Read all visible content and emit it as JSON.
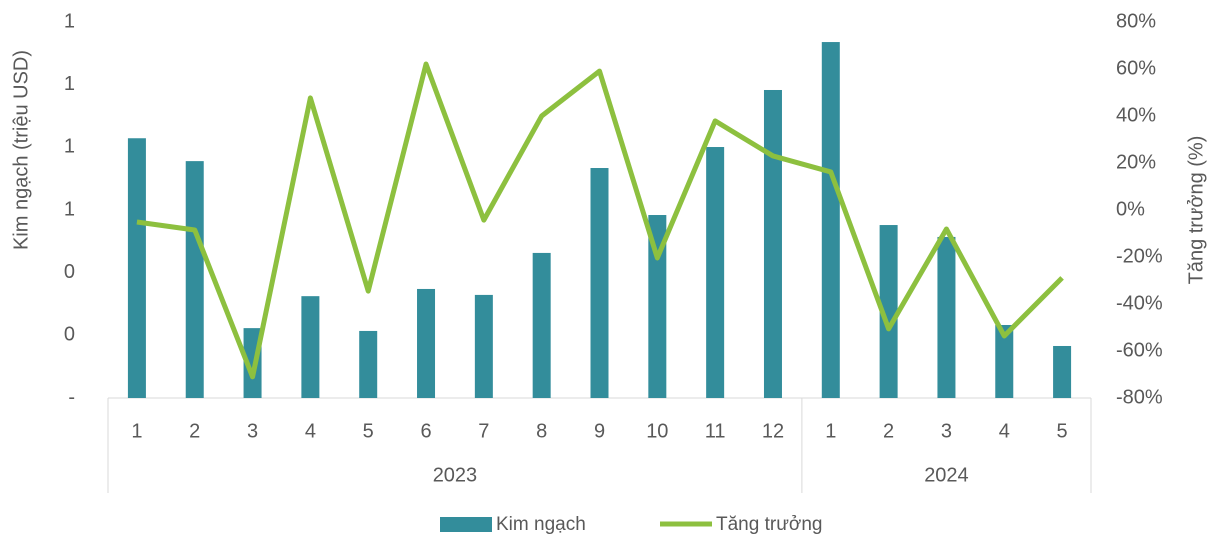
{
  "chart_data": {
    "type": "bar-line",
    "y_axis_label": "Kim ngạch (triệu USD)",
    "y2_axis_label": "Tăng trưởng (%)",
    "groups": [
      {
        "label": "2023",
        "categories": [
          "1",
          "2",
          "3",
          "4",
          "5",
          "6",
          "7",
          "8",
          "9",
          "10",
          "11",
          "12"
        ]
      },
      {
        "label": "2024",
        "categories": [
          "1",
          "2",
          "3",
          "4",
          "5"
        ]
      }
    ],
    "series": [
      {
        "name": "Kim ngạch",
        "type": "bar",
        "color": "#338d9b",
        "values": [
          0.829,
          0.756,
          0.223,
          0.325,
          0.214,
          0.348,
          0.329,
          0.463,
          0.734,
          0.584,
          0.801,
          0.983,
          1.136,
          0.552,
          0.514,
          0.233,
          0.166
        ]
      },
      {
        "name": "Tăng trưởng",
        "type": "line",
        "axis": "y2",
        "color": "#8dc03f",
        "values": [
          -5.1,
          -8.5,
          -71,
          47.7,
          -34.5,
          62.1,
          -4.3,
          40,
          59.1,
          -20.4,
          37.9,
          23,
          16.2,
          -50.6,
          -8.1,
          -53.6,
          -28.9
        ]
      }
    ],
    "ylim": [
      0,
      1.2
    ],
    "yticks": [
      {
        "value": 0,
        "label": "-"
      },
      {
        "value": 0.2,
        "label": "0"
      },
      {
        "value": 0.4,
        "label": "0"
      },
      {
        "value": 0.6,
        "label": "1"
      },
      {
        "value": 0.8,
        "label": "1"
      },
      {
        "value": 1.0,
        "label": "1"
      },
      {
        "value": 1.2,
        "label": "1"
      }
    ],
    "y2lim": [
      -80,
      80
    ],
    "y2ticks": [
      {
        "value": -80,
        "label": "-80%"
      },
      {
        "value": -60,
        "label": "-60%"
      },
      {
        "value": -40,
        "label": "-40%"
      },
      {
        "value": -20,
        "label": "-20%"
      },
      {
        "value": 0,
        "label": "0%"
      },
      {
        "value": 20,
        "label": "20%"
      },
      {
        "value": 40,
        "label": "40%"
      },
      {
        "value": 60,
        "label": "60%"
      },
      {
        "value": 80,
        "label": "80%"
      }
    ],
    "legend": "bottom"
  }
}
